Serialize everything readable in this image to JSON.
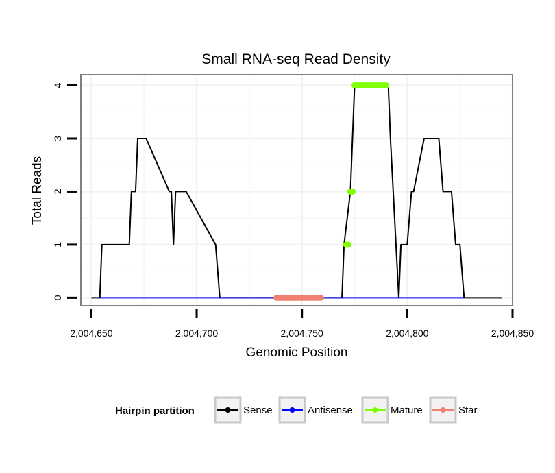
{
  "chart_data": {
    "type": "line",
    "title": "Small RNA-seq Read Density",
    "xlabel": "Genomic Position",
    "ylabel": "Total Reads",
    "xlim": [
      2004645,
      2004850
    ],
    "ylim": [
      -0.15,
      4.2
    ],
    "x_ticks": [
      2004650,
      2004700,
      2004750,
      2004800,
      2004850
    ],
    "x_tick_labels": [
      "2,004,650",
      "2,004,700",
      "2,004,750",
      "2,004,800",
      "2,004,850"
    ],
    "y_ticks": [
      0,
      1,
      2,
      3,
      4
    ],
    "y_tick_labels": [
      "0",
      "1",
      "2",
      "3",
      "4"
    ],
    "grid": true,
    "legend_title": "Hairpin partition",
    "legend_position": "bottom",
    "series": [
      {
        "name": "Sense",
        "color": "#000000",
        "x": [
          2004650,
          2004654,
          2004655,
          2004668,
          2004669,
          2004671,
          2004672,
          2004675,
          2004676,
          2004687,
          2004688,
          2004689,
          2004690,
          2004694,
          2004695,
          2004709,
          2004711,
          2004769,
          2004770,
          2004773,
          2004775,
          2004791,
          2004792,
          2004796,
          2004797,
          2004800,
          2004802,
          2004803,
          2004808,
          2004809,
          2004812,
          2004814,
          2004815,
          2004817,
          2004819,
          2004821,
          2004823,
          2004825,
          2004827,
          2004845
        ],
        "y": [
          0,
          0,
          1,
          1,
          2,
          2,
          3,
          3,
          3,
          2,
          2,
          1,
          2,
          2,
          2,
          1,
          0,
          0,
          1,
          2,
          4,
          4,
          3,
          0,
          1,
          1,
          2,
          2,
          3,
          3,
          3,
          3,
          3,
          2,
          2,
          2,
          1,
          1,
          0,
          0
        ]
      },
      {
        "name": "Antisense",
        "color": "#0000ff",
        "x": [
          2004654,
          2004711,
          2004770,
          2004827
        ],
        "y": [
          0,
          0,
          0,
          0
        ]
      },
      {
        "name": "Mature",
        "color": "#7fff00",
        "x": [
          2004771,
          2004772,
          2004773,
          2004774,
          2004775,
          2004776,
          2004777,
          2004778,
          2004779,
          2004780,
          2004781,
          2004782,
          2004783,
          2004784,
          2004785,
          2004786,
          2004787,
          2004788,
          2004789,
          2004790
        ],
        "y": [
          1,
          1,
          2,
          2,
          4,
          4,
          4,
          4,
          4,
          4,
          4,
          4,
          4,
          4,
          4,
          4,
          4,
          4,
          4,
          4
        ]
      },
      {
        "name": "Star",
        "color": "#f08070",
        "x": [
          2004738,
          2004739,
          2004740,
          2004741,
          2004742,
          2004743,
          2004744,
          2004745,
          2004746,
          2004747,
          2004748,
          2004749,
          2004750,
          2004751,
          2004752,
          2004753,
          2004754,
          2004755,
          2004756,
          2004757,
          2004758,
          2004759
        ],
        "y": [
          0,
          0,
          0,
          0,
          0,
          0,
          0,
          0,
          0,
          0,
          0,
          0,
          0,
          0,
          0,
          0,
          0,
          0,
          0,
          0,
          0,
          0
        ]
      }
    ]
  }
}
